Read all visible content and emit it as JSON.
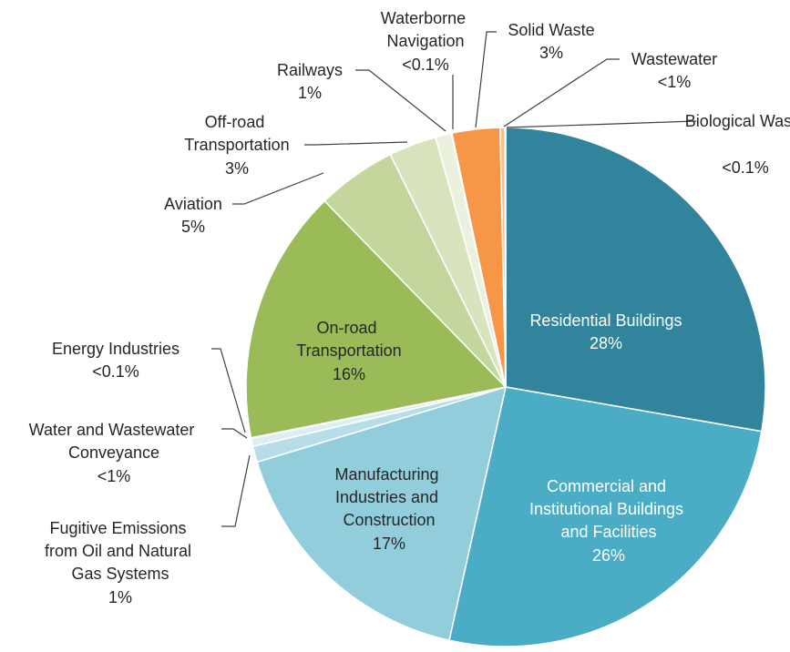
{
  "chart_data": {
    "type": "pie",
    "categories": [
      "Residential Buildings",
      "Commercial and Institutional Buildings and Facilities",
      "Manufacturing Industries and Construction",
      "Fugitive Emissions from Oil and Natural Gas Systems",
      "Water and Wastewater Conveyance",
      "Energy Industries",
      "On-road Transportation",
      "Aviation",
      "Off-road Transportation",
      "Railways",
      "Waterborne Navigation",
      "Solid Waste",
      "Wastewater",
      "Biological Waste"
    ],
    "values": [
      28,
      26,
      17,
      1,
      0.5,
      0.05,
      16,
      5,
      3,
      1,
      0.05,
      3,
      0.3,
      0.05
    ],
    "value_labels": [
      "28%",
      "26%",
      "17%",
      "1%",
      "<1%",
      "<0.1%",
      "16%",
      "5%",
      "3%",
      "1%",
      "<0.1%",
      "3%",
      "<1%",
      "<0.1%"
    ],
    "colors": [
      "#31849b",
      "#4bacc6",
      "#92cddc",
      "#b7dee8",
      "#daeef3",
      "#d7e4bd",
      "#9bbb59",
      "#c3d69b",
      "#d7e4bd",
      "#ebf1de",
      "#f2f2f2",
      "#f79646",
      "#fabf8f",
      "#fcd5b4"
    ]
  }
}
